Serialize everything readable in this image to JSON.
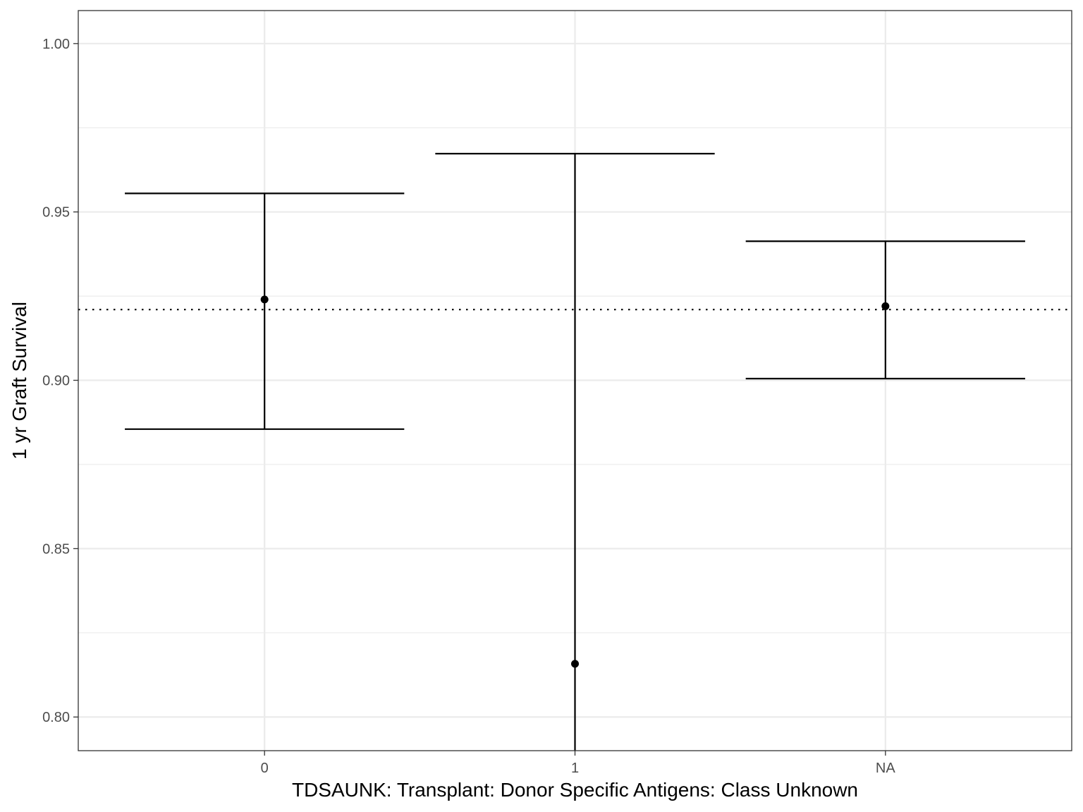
{
  "chart_data": {
    "type": "errorbar",
    "title": "",
    "xlabel": "TDSAUNK: Transplant: Donor Specific Antigens: Class Unknown",
    "ylabel": "1 yr Graft Survival",
    "categories": [
      "0",
      "1",
      "NA"
    ],
    "points": [
      {
        "category": "0",
        "estimate": 0.924,
        "lower": 0.8855,
        "upper": 0.9555
      },
      {
        "category": "1",
        "estimate": 0.8158,
        "lower": 0.79,
        "upper": 0.9673
      },
      {
        "category": "NA",
        "estimate": 0.922,
        "lower": 0.9005,
        "upper": 0.9413
      }
    ],
    "reference_line": {
      "y": 0.921,
      "style": "dotted"
    },
    "ylim": [
      0.79,
      1.0098
    ],
    "y_ticks": [
      0.8,
      0.85,
      0.9,
      0.95,
      1.0
    ],
    "y_tick_labels": [
      "0.80",
      "0.85",
      "0.90",
      "0.95",
      "1.00"
    ],
    "grid": true,
    "colors": {
      "marks": "#000000",
      "grid": "#ebebeb",
      "tick_text": "#4d4d4d"
    }
  }
}
